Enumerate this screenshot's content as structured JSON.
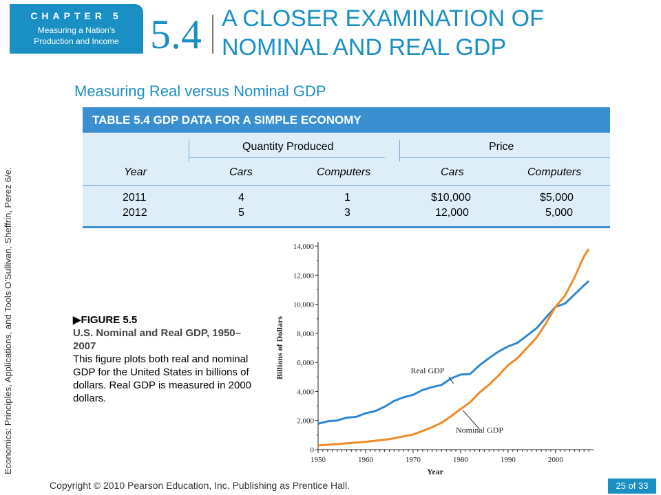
{
  "header": {
    "chapter": "CHAPTER 5",
    "chapter_subtitle": [
      "Measuring a Nation’s",
      "Production and Income"
    ],
    "section_number": "5.4",
    "section_title": [
      "A CLOSER EXAMINATION OF",
      "NOMINAL AND REAL GDP"
    ]
  },
  "side_text": "Economics: Principles, Applications, and Tools    O’Sullivan, Sheffrin, Perez    6/e.",
  "subtitle": "Measuring Real versus Nominal GDP",
  "table": {
    "title": "TABLE 5.4  GDP DATA FOR A SIMPLE ECONOMY",
    "groups": [
      "Quantity Produced",
      "Price"
    ],
    "columns": [
      "Year",
      "Cars",
      "Computers",
      "Cars",
      "Computers"
    ],
    "rows": [
      [
        "2011",
        "4",
        "1",
        "$10,000",
        "$5,000"
      ],
      [
        "2012",
        "5",
        "3",
        "12,000",
        "5,000"
      ]
    ]
  },
  "caption": {
    "figure": "▶FIGURE 5.5",
    "title": "U.S. Nominal and Real GDP, 1950–2007",
    "body": "This figure plots both real and nominal GDP for the United States in billions of dollars. Real GDP is measured in 2000 dollars."
  },
  "chart_data": {
    "type": "line",
    "title": "",
    "xlabel": "Year",
    "ylabel": "Billions of Dollars",
    "xlim": [
      1950,
      2008
    ],
    "ylim": [
      0,
      14000
    ],
    "xticks": [
      "1950",
      "1960",
      "1970",
      "1980",
      "1990",
      "2000"
    ],
    "yticks": [
      "0",
      "2,000",
      "4,000",
      "6,000",
      "8,000",
      "10,000",
      "12,000",
      "14,000"
    ],
    "grid": false,
    "series": [
      {
        "name": "Real GDP",
        "color": "#2f86d1",
        "x": [
          1950,
          1952,
          1954,
          1956,
          1958,
          1960,
          1962,
          1964,
          1966,
          1968,
          1970,
          1972,
          1974,
          1976,
          1978,
          1980,
          1982,
          1984,
          1986,
          1988,
          1990,
          1992,
          1994,
          1996,
          1998,
          2000,
          2002,
          2004,
          2006,
          2007
        ],
        "values": [
          1780,
          1950,
          2000,
          2200,
          2250,
          2500,
          2650,
          2950,
          3350,
          3600,
          3770,
          4100,
          4300,
          4450,
          4900,
          5160,
          5200,
          5800,
          6300,
          6750,
          7100,
          7350,
          7850,
          8350,
          9100,
          9820,
          10050,
          10680,
          11300,
          11600
        ]
      },
      {
        "name": "Nominal GDP",
        "color": "#f08a26",
        "x": [
          1950,
          1955,
          1960,
          1965,
          1970,
          1972,
          1974,
          1976,
          1978,
          1980,
          1982,
          1984,
          1986,
          1988,
          1990,
          1992,
          1994,
          1996,
          1998,
          2000,
          2002,
          2004,
          2006,
          2007
        ],
        "values": [
          290,
          410,
          530,
          720,
          1040,
          1280,
          1540,
          1850,
          2300,
          2790,
          3250,
          3930,
          4460,
          5100,
          5800,
          6300,
          7000,
          7700,
          8700,
          9820,
          10600,
          11850,
          13300,
          13800
        ]
      }
    ]
  },
  "footer": {
    "copyright": "Copyright © 2010 Pearson Education, Inc. Publishing as Prentice Hall.",
    "page": "25 of 33"
  }
}
